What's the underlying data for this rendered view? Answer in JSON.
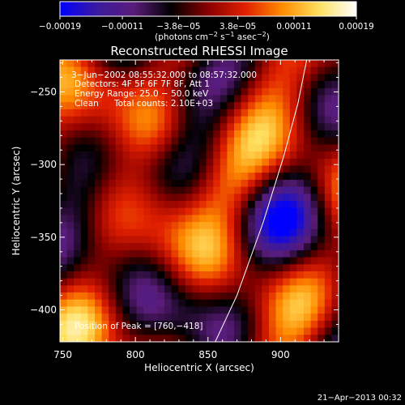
{
  "chart_data": {
    "type": "heatmap",
    "title": "Reconstructed RHESSI Image",
    "xlabel": "Heliocentric X (arcsec)",
    "ylabel": "Heliocentric Y (arcsec)",
    "xlim": [
      748,
      940
    ],
    "ylim": [
      -422,
      -228
    ],
    "x_ticks": [
      750,
      800,
      850,
      900
    ],
    "x_tick_labels": [
      "750",
      "800",
      "850",
      "900"
    ],
    "y_ticks": [
      -250,
      -300,
      -350,
      -400
    ],
    "y_tick_labels": [
      "−250",
      "−300",
      "−350",
      "−400"
    ],
    "colorbar": {
      "range": [
        -0.00019,
        0.00019
      ],
      "ticks": [
        -0.00019,
        -0.00011,
        -3.8e-05,
        3.8e-05,
        0.00011,
        0.00019
      ],
      "tick_labels": [
        "−0.00019",
        "−0.00011",
        "−3.8e−05",
        "3.8e−05",
        "0.00011",
        "0.00019"
      ],
      "unit_prefix": "(photons cm",
      "unit_exp1": "−2",
      "unit_mid": " s",
      "unit_exp2": "−1",
      "unit_mid2": " asec",
      "unit_exp3": "−2",
      "unit_suffix": ")",
      "colormap": [
        "#0000ff",
        "#3a1a9e",
        "#5a1c7a",
        "#000000",
        "#8a0000",
        "#e02000",
        "#ff8c00",
        "#ffe060",
        "#ffffff"
      ]
    },
    "annotations": {
      "time_range": "3−Jun−2002 08:55:32.000 to 08:57:32.000",
      "detectors": "Detectors: 4F 5F 6F 7F 8F, Att 1",
      "energy_range": "Energy Range: 25.0 − 50.0 keV",
      "clean": "Clean",
      "total_counts": "Total counts: 2.10E+03",
      "peak": "Position of Peak = [760,−418]"
    },
    "limb_curve": {
      "points": [
        [
          855,
          -422
        ],
        [
          870,
          -390
        ],
        [
          888,
          -340
        ],
        [
          902,
          -295
        ],
        [
          912,
          -258
        ],
        [
          918,
          -228
        ]
      ]
    },
    "peak_position": [
      760,
      -418
    ],
    "image_grid": {
      "xmin": 748,
      "xmax": 940,
      "ymin": -422,
      "ymax": -228,
      "nx": 24,
      "ny": 24,
      "values_description": "intensity field, normalized to colorbar range"
    }
  },
  "footer": {
    "date": "21−Apr−2013 00:32"
  }
}
